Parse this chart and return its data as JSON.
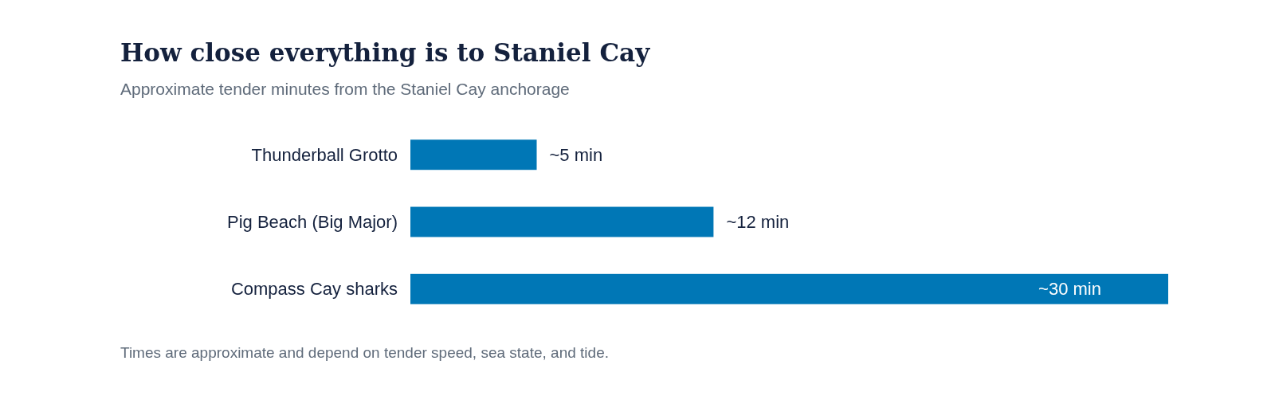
{
  "chart_data": {
    "type": "bar",
    "orientation": "horizontal",
    "title": "How close everything is to Staniel Cay",
    "subtitle": "Approximate tender minutes from the Staniel Cay anchorage",
    "categories": [
      "Thunderball Grotto",
      "Pig Beach (Big Major)",
      "Compass Cay sharks"
    ],
    "values": [
      5,
      12,
      30
    ],
    "value_labels": [
      "~5 min",
      "~12 min",
      "~30 min"
    ],
    "color": "#0077b6",
    "annotations": [
      "Times are approximate and depend on tender speed, sea state, and tide."
    ]
  }
}
